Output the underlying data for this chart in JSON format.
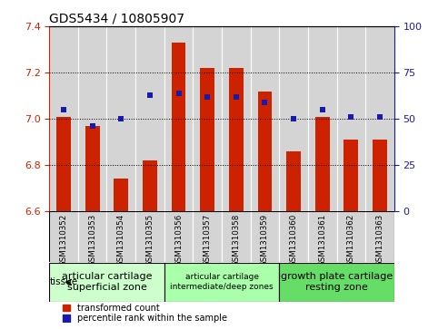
{
  "title": "GDS5434 / 10805907",
  "samples": [
    "GSM1310352",
    "GSM1310353",
    "GSM1310354",
    "GSM1310355",
    "GSM1310356",
    "GSM1310357",
    "GSM1310358",
    "GSM1310359",
    "GSM1310360",
    "GSM1310361",
    "GSM1310362",
    "GSM1310363"
  ],
  "red_values": [
    7.01,
    6.97,
    6.74,
    6.82,
    7.33,
    7.22,
    7.22,
    7.12,
    6.86,
    7.01,
    6.91,
    6.91
  ],
  "blue_values": [
    55,
    46,
    50,
    63,
    64,
    62,
    62,
    59,
    50,
    55,
    51,
    51
  ],
  "ylim_left": [
    6.6,
    7.4
  ],
  "ylim_right": [
    0,
    100
  ],
  "yticks_left": [
    6.6,
    6.8,
    7.0,
    7.2,
    7.4
  ],
  "yticks_right": [
    0,
    25,
    50,
    75,
    100
  ],
  "red_color": "#cc2200",
  "blue_color": "#1a1aaa",
  "bar_width": 0.5,
  "tissue_groups": [
    {
      "label": "articular cartilage\nsuperficial zone",
      "start": 0,
      "end": 3,
      "color": "#ccffcc",
      "fontsize": 8
    },
    {
      "label": "articular cartilage\nintermediate/deep zones",
      "start": 4,
      "end": 7,
      "color": "#aaffaa",
      "fontsize": 6.5
    },
    {
      "label": "growth plate cartilage\nresting zone",
      "start": 8,
      "end": 11,
      "color": "#66dd66",
      "fontsize": 8
    }
  ],
  "tissue_label": "tissue",
  "legend_red": "transformed count",
  "legend_blue": "percentile rank within the sample",
  "cell_bg_color": "#d4d4d4",
  "plot_bg_color": "#ffffff",
  "title_fontsize": 10,
  "tick_fontsize": 8,
  "label_fontsize": 7
}
